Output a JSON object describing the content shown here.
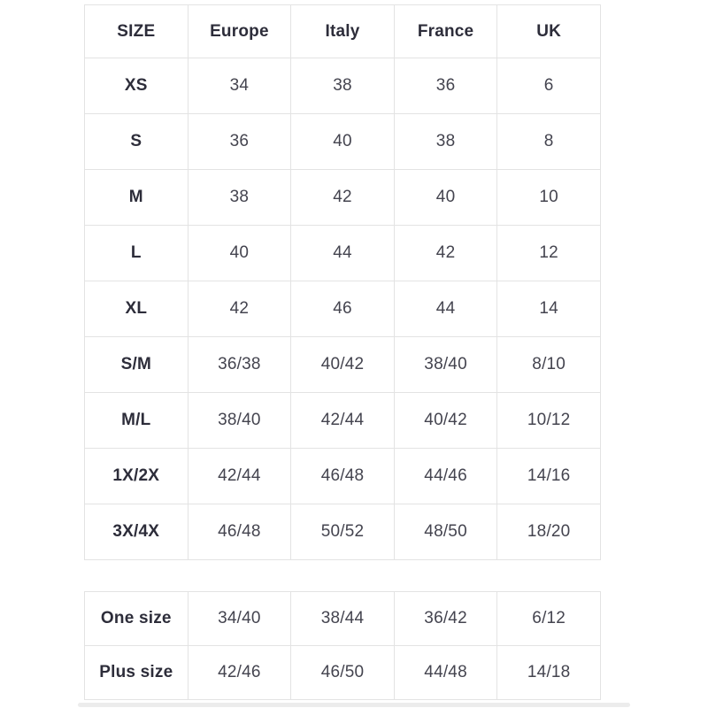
{
  "tables": {
    "main": {
      "headers": [
        "SIZE",
        "Europe",
        "Italy",
        "France",
        "UK"
      ],
      "rows": [
        {
          "size": "XS",
          "values": [
            "34",
            "38",
            "36",
            "6"
          ]
        },
        {
          "size": "S",
          "values": [
            "36",
            "40",
            "38",
            "8"
          ]
        },
        {
          "size": "M",
          "values": [
            "38",
            "42",
            "40",
            "10"
          ]
        },
        {
          "size": "L",
          "values": [
            "40",
            "44",
            "42",
            "12"
          ]
        },
        {
          "size": "XL",
          "values": [
            "42",
            "46",
            "44",
            "14"
          ]
        },
        {
          "size": "S/M",
          "values": [
            "36/38",
            "40/42",
            "38/40",
            "8/10"
          ]
        },
        {
          "size": "M/L",
          "values": [
            "38/40",
            "42/44",
            "40/42",
            "10/12"
          ]
        },
        {
          "size": "1X/2X",
          "values": [
            "42/44",
            "46/48",
            "44/46",
            "14/16"
          ]
        },
        {
          "size": "3X/4X",
          "values": [
            "46/48",
            "50/52",
            "48/50",
            "18/20"
          ]
        }
      ]
    },
    "special": {
      "rows": [
        {
          "size": "One size",
          "values": [
            "34/40",
            "38/44",
            "36/42",
            "6/12"
          ]
        },
        {
          "size": "Plus size",
          "values": [
            "42/46",
            "46/50",
            "44/48",
            "14/18"
          ]
        }
      ]
    }
  },
  "colors": {
    "background": "#ffffff",
    "border": "#e3e3e3",
    "header_text": "#2d2d3a",
    "cell_text": "#44444f",
    "scrollbar": "#ececec"
  }
}
